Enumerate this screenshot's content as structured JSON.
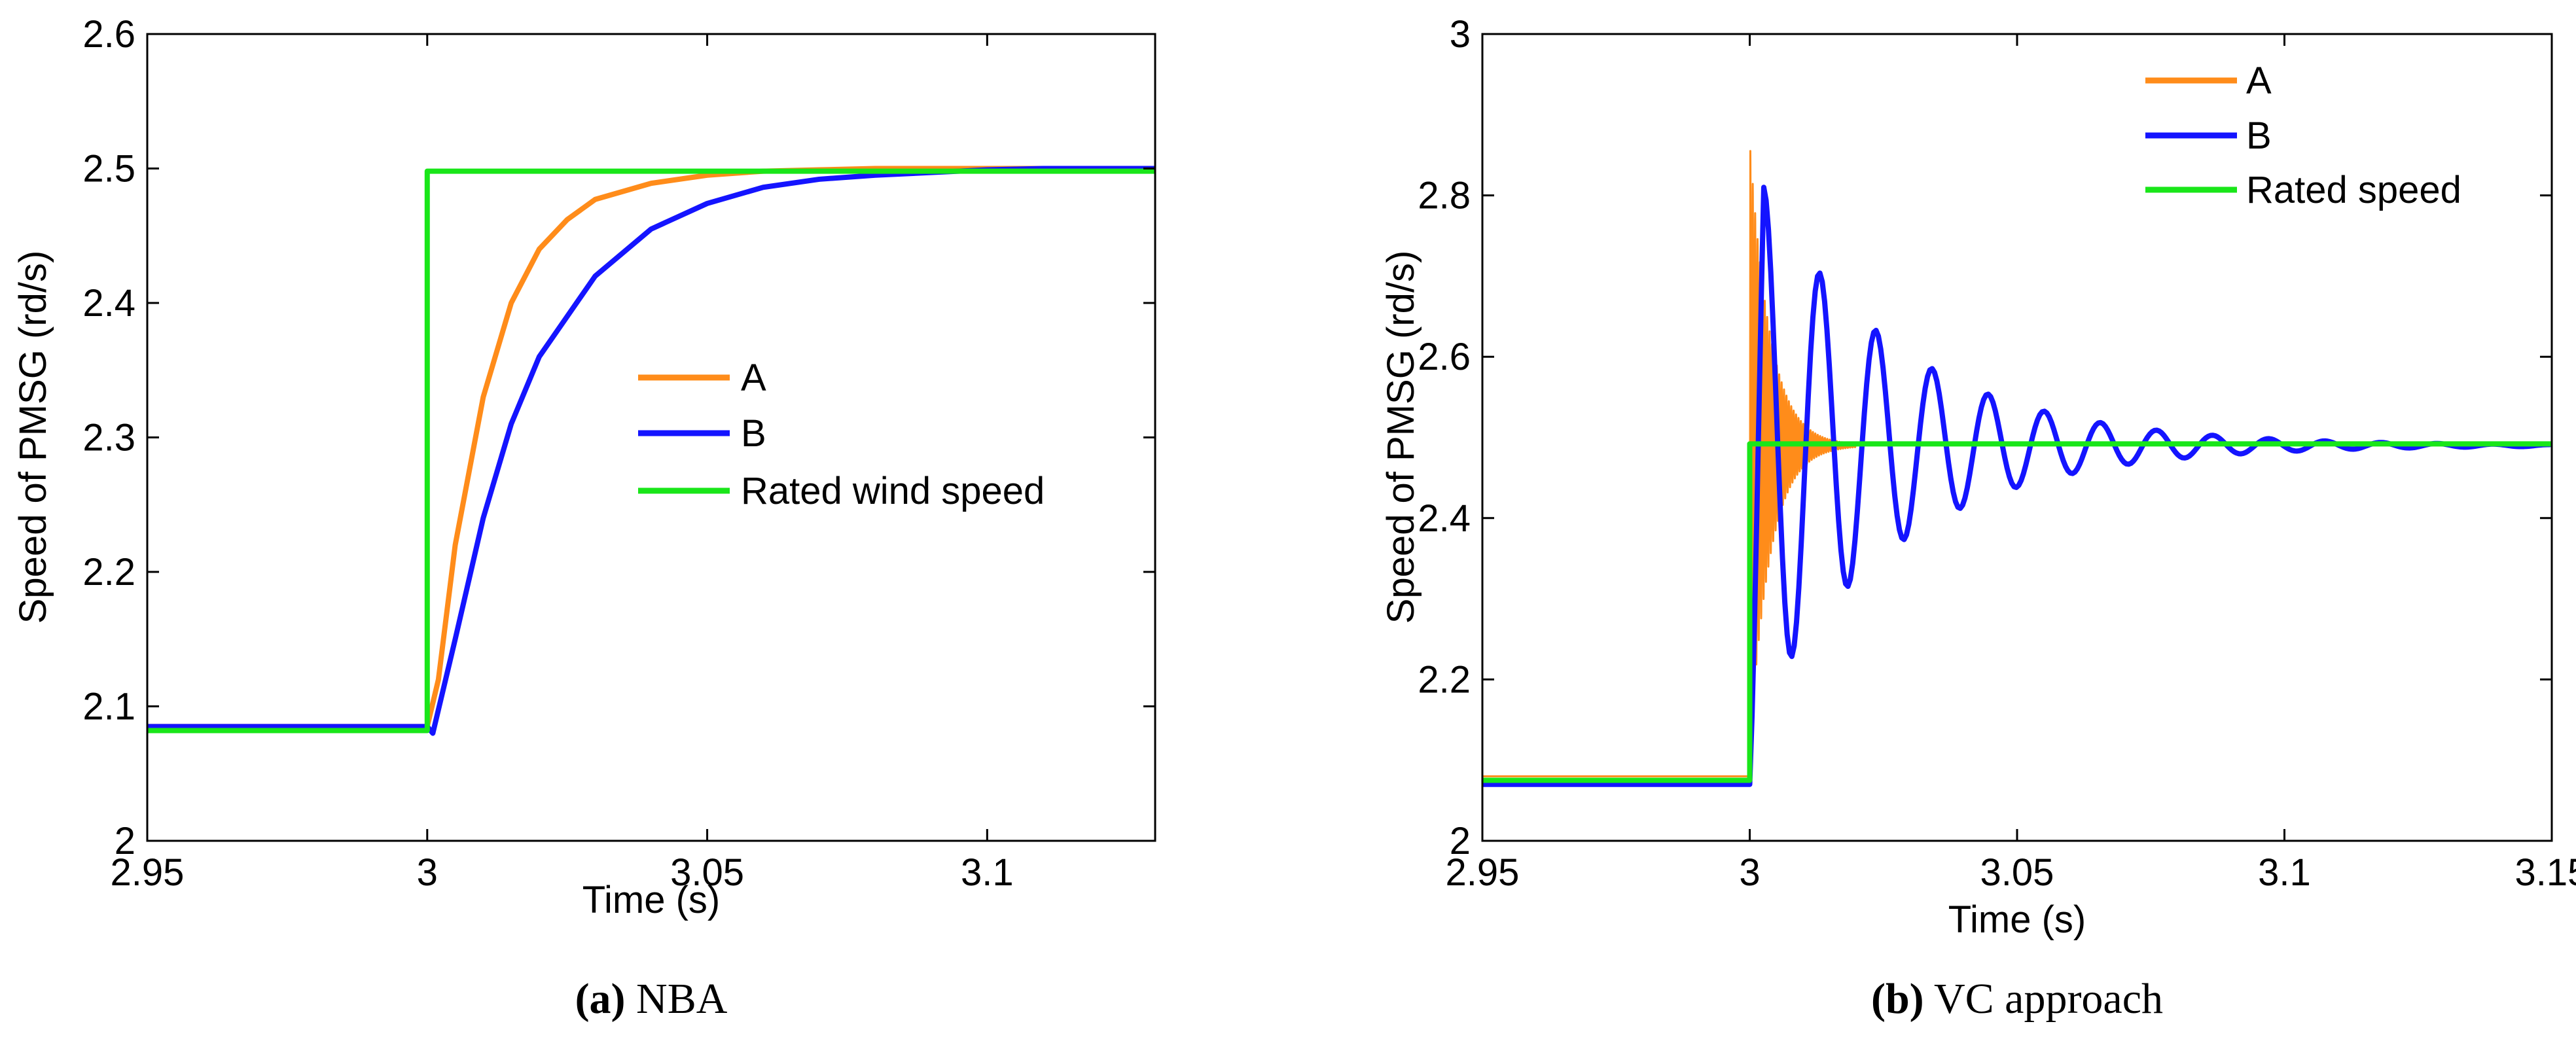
{
  "colors": {
    "series_a": "#ff8c1a",
    "series_b": "#1414ff",
    "series_rated": "#19e619",
    "axis": "#000000",
    "background": "#ffffff"
  },
  "chart_data": [
    {
      "type": "line",
      "caption_label": "(a)",
      "caption_text": "NBA",
      "xlabel": "Time (s)",
      "ylabel": "Speed of PMSG (rd/s)",
      "xlim": [
        2.95,
        3.13
      ],
      "ylim": [
        2.0,
        2.6
      ],
      "xticks": [
        2.95,
        3.0,
        3.05,
        3.1
      ],
      "xtick_labels": [
        "2.95",
        "3",
        "3.05",
        "3.1"
      ],
      "yticks": [
        2.0,
        2.1,
        2.2,
        2.3,
        2.4,
        2.5,
        2.6
      ],
      "ytick_labels": [
        "2",
        "2.1",
        "2.2",
        "2.3",
        "2.4",
        "2.5",
        "2.6"
      ],
      "grid": false,
      "legend_position": "center-right",
      "series": [
        {
          "name": "A",
          "color": "#ff8c1a",
          "x": [
            2.95,
            2.97,
            2.99,
            3.0,
            3.002,
            3.005,
            3.01,
            3.015,
            3.02,
            3.025,
            3.03,
            3.04,
            3.05,
            3.06,
            3.07,
            3.08,
            3.1,
            3.13
          ],
          "y": [
            2.085,
            2.085,
            2.085,
            2.085,
            2.12,
            2.22,
            2.33,
            2.4,
            2.44,
            2.462,
            2.477,
            2.489,
            2.495,
            2.498,
            2.499,
            2.5,
            2.5,
            2.5
          ]
        },
        {
          "name": "B",
          "color": "#1414ff",
          "x": [
            2.95,
            2.97,
            2.99,
            3.0,
            3.001,
            3.005,
            3.01,
            3.015,
            3.02,
            3.03,
            3.04,
            3.05,
            3.06,
            3.07,
            3.08,
            3.09,
            3.1,
            3.11,
            3.13
          ],
          "y": [
            2.085,
            2.085,
            2.085,
            2.085,
            2.08,
            2.15,
            2.24,
            2.31,
            2.36,
            2.42,
            2.455,
            2.474,
            2.486,
            2.492,
            2.495,
            2.497,
            2.499,
            2.5,
            2.5
          ]
        },
        {
          "name": "Rated wind speed",
          "color": "#19e619",
          "x": [
            2.95,
            3.0,
            3.0,
            3.13
          ],
          "y": [
            2.082,
            2.082,
            2.498,
            2.498
          ]
        }
      ]
    },
    {
      "type": "line",
      "caption_label": "(b)",
      "caption_text": "VC approach",
      "xlabel": "Time (s)",
      "ylabel": "Speed of PMSG (rd/s)",
      "xlim": [
        2.95,
        3.15
      ],
      "ylim": [
        2.0,
        3.0
      ],
      "xticks": [
        2.95,
        3.0,
        3.05,
        3.1,
        3.15
      ],
      "xtick_labels": [
        "2.95",
        "3",
        "3.05",
        "3.1",
        "3.15"
      ],
      "yticks": [
        2.0,
        2.2,
        2.4,
        2.6,
        2.8,
        3.0
      ],
      "ytick_labels": [
        "2",
        "2.2",
        "2.4",
        "2.6",
        "2.8",
        "3"
      ],
      "grid": false,
      "legend_position": "top-right",
      "series": [
        {
          "name": "A",
          "color": "#ff8c1a",
          "oscillation": {
            "t0": 3.0,
            "y_start": 2.08,
            "target": 2.49,
            "peak": 2.855,
            "period": 0.00045,
            "decay": 0.0038,
            "t_end": 3.02
          }
        },
        {
          "name": "B",
          "color": "#1414ff",
          "oscillation": {
            "t0": 3.0,
            "y_start": 2.07,
            "target": 2.49,
            "peak": 2.81,
            "period": 0.0105,
            "decay": 0.026,
            "t_end": 3.15
          }
        },
        {
          "name": "Rated speed",
          "color": "#19e619",
          "x": [
            2.95,
            3.0,
            3.0,
            3.15
          ],
          "y": [
            2.075,
            2.075,
            2.492,
            2.492
          ]
        }
      ]
    }
  ]
}
